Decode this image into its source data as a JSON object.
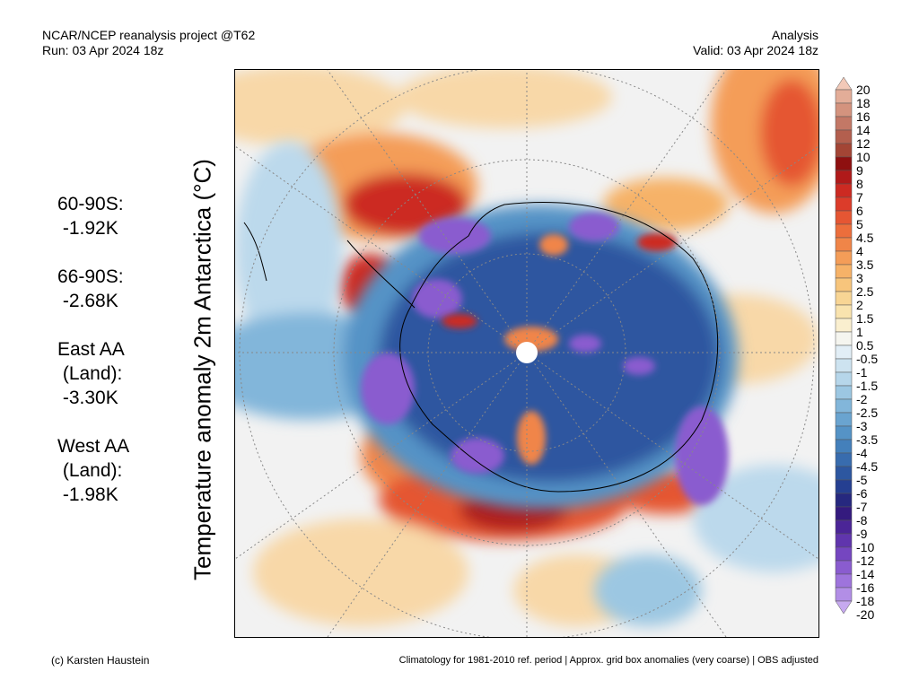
{
  "header": {
    "left_line1": "NCAR/NCEP reanalysis project @T62",
    "left_line2": "Run: 03 Apr 2024 18z",
    "right_line1": "Analysis",
    "right_line2": "Valid: 03 Apr 2024 18z"
  },
  "variable_label": "Temperature anomaly 2m Antarctica (°C)",
  "stats": [
    {
      "line1": "60-90S:",
      "line2": " -1.92K"
    },
    {
      "line1": "66-90S:",
      "line2": " -2.68K"
    },
    {
      "line1": "East AA",
      "line2": " (Land):",
      "line3": " -3.30K"
    },
    {
      "line1": "West AA",
      "line2": " (Land):",
      "line3": " -1.98K"
    }
  ],
  "colorbar": {
    "levels": [
      "20",
      "18",
      "16",
      "14",
      "12",
      "10",
      "9",
      "8",
      "7",
      "6",
      "5",
      "4.5",
      "4",
      "3.5",
      "3",
      "2.5",
      "2",
      "1.5",
      "1",
      "0.5",
      "-0.5",
      "-1",
      "-1.5",
      "-2",
      "-2.5",
      "-3",
      "-3.5",
      "-4",
      "-4.5",
      "-5",
      "-6",
      "-7",
      "-8",
      "-9",
      "-10",
      "-12",
      "-14",
      "-16",
      "-18",
      "-20"
    ],
    "colors": [
      "#f2c9b8",
      "#e3ad98",
      "#d4937e",
      "#c37866",
      "#b35f4e",
      "#a34535",
      "#8e1010",
      "#b01a1a",
      "#cc2a22",
      "#dc3c2a",
      "#e55633",
      "#ec6e3c",
      "#f08548",
      "#f49d58",
      "#f6b268",
      "#f7c57c",
      "#f8d594",
      "#f9e3ae",
      "#faefcf",
      "#f5f5ef",
      "#e2eef6",
      "#cde3f0",
      "#b6d6ea",
      "#9cc7e2",
      "#82b6da",
      "#6aa4d0",
      "#5593c6",
      "#4480bb",
      "#386cae",
      "#2d57a0",
      "#253f91",
      "#26287f",
      "#341a7e",
      "#4b2597",
      "#6035ad",
      "#7546c0",
      "#8a5ccf",
      "#9e74dc",
      "#b28ee6",
      "#c6a9ef"
    ]
  },
  "footer": {
    "left": "(c) Karsten Haustein",
    "right": "Climatology for 1981-2010 ref. period | Approx. grid box anomalies (very coarse) | OBS adjusted"
  },
  "map": {
    "region": "Antarctica (south polar stereographic)",
    "colors": {
      "background": "#f2f2f2",
      "warm_light": "#f8d8a8",
      "warm": "#f08548",
      "warm_strong": "#cc2a22",
      "cold_light": "#bcd9ec",
      "cold": "#5593c6",
      "cold_strong": "#2d57a0",
      "cold_extreme": "#8a5ccf",
      "coastline": "#000000",
      "gridline": "#888888"
    }
  }
}
